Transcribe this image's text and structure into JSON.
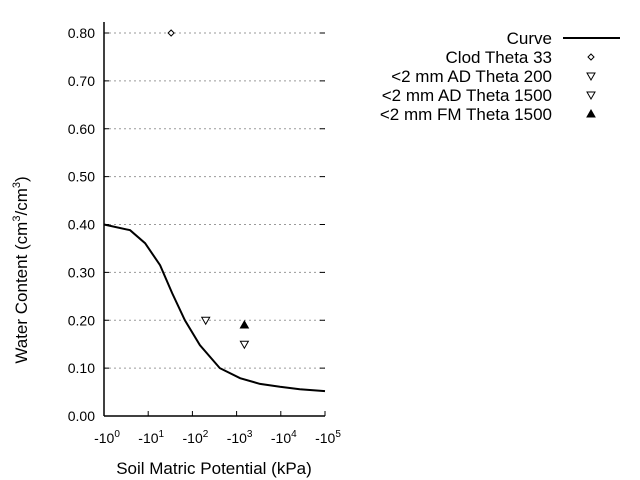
{
  "chart_data": {
    "type": "line",
    "xlabel": "Soil Matric Potential (kPa)",
    "ylabel": {
      "main": "Water Content (cm",
      "sup1": "3",
      "mid": "/cm",
      "sup2": "3",
      "end": ")"
    },
    "x_scale": "log",
    "xlim": [
      -1,
      -100000
    ],
    "ylim": [
      0,
      0.82
    ],
    "x_ticks": [
      {
        "base": "-10",
        "exp": "0"
      },
      {
        "base": "-10",
        "exp": "1"
      },
      {
        "base": "-10",
        "exp": "2"
      },
      {
        "base": "-10",
        "exp": "3"
      },
      {
        "base": "-10",
        "exp": "4"
      },
      {
        "base": "-10",
        "exp": "5"
      }
    ],
    "y_ticks": [
      "0.00",
      "0.10",
      "0.20",
      "0.30",
      "0.40",
      "0.50",
      "0.60",
      "0.70",
      "0.80"
    ],
    "y_tick_values": [
      0,
      0.1,
      0.2,
      0.3,
      0.4,
      0.5,
      0.6,
      0.7,
      0.8
    ],
    "grid": "horizontal dotted",
    "legend_position": "top-right",
    "series": [
      {
        "name": "Curve",
        "type": "line",
        "color": "#000000",
        "x": [
          -1,
          -3.9,
          -8.5,
          -18.6,
          -34.7,
          -67.6,
          -148,
          -417,
          -1202,
          -3388,
          -9550,
          -26915,
          -100000
        ],
        "y": [
          0.4,
          0.388,
          0.361,
          0.315,
          0.257,
          0.2,
          0.148,
          0.1,
          0.079,
          0.067,
          0.061,
          0.056,
          0.052
        ]
      },
      {
        "name": "Clod Theta 33",
        "type": "scatter",
        "marker": "diamond-open",
        "x": [
          -33
        ],
        "y": [
          0.8
        ]
      },
      {
        "name": "<2 mm AD Theta 200",
        "type": "scatter",
        "marker": "triangle-down-open",
        "x": [
          -200
        ],
        "y": [
          0.2
        ]
      },
      {
        "name": "<2 mm AD Theta 1500",
        "type": "scatter",
        "marker": "triangle-down-open",
        "x": [
          -1500
        ],
        "y": [
          0.15
        ]
      },
      {
        "name": "<2 mm FM Theta 1500",
        "type": "scatter",
        "marker": "triangle-up-filled",
        "x": [
          -1500
        ],
        "y": [
          0.19
        ]
      }
    ]
  }
}
